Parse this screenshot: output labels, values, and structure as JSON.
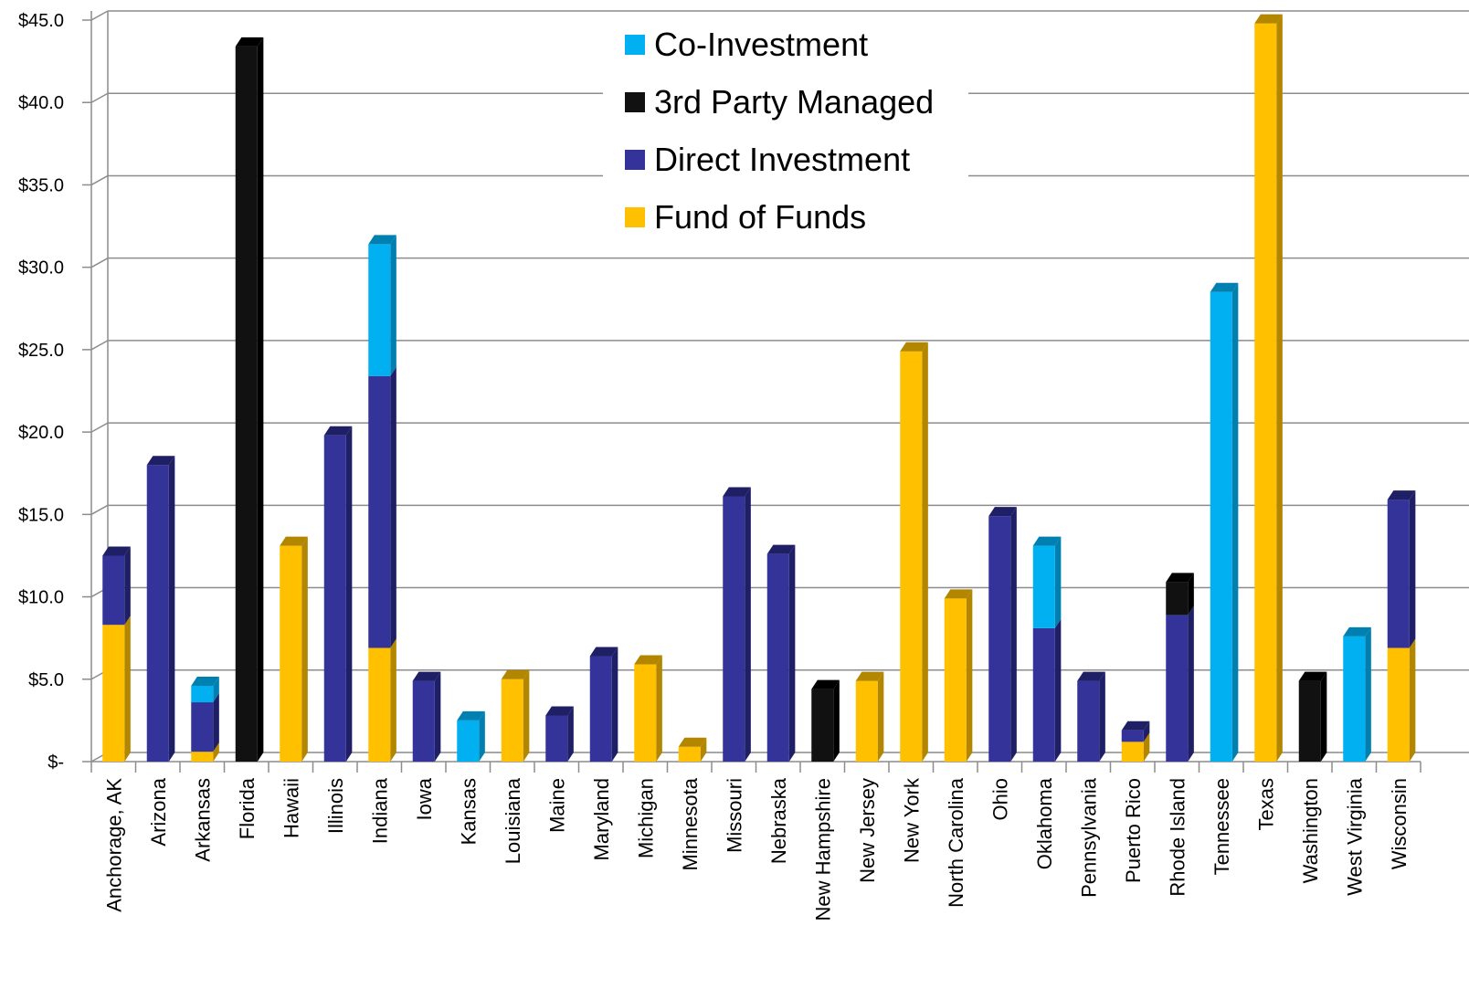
{
  "chart_data": {
    "type": "bar",
    "stacked": true,
    "style": "3d-column",
    "title": "",
    "xlabel": "",
    "ylabel": "",
    "ylim": [
      0,
      45
    ],
    "y_ticks": [
      {
        "value": 0,
        "label": "$-"
      },
      {
        "value": 5,
        "label": "$5.0"
      },
      {
        "value": 10,
        "label": "$10.0"
      },
      {
        "value": 15,
        "label": "$15.0"
      },
      {
        "value": 20,
        "label": "$20.0"
      },
      {
        "value": 25,
        "label": "$25.0"
      },
      {
        "value": 30,
        "label": "$30.0"
      },
      {
        "value": 35,
        "label": "$35.0"
      },
      {
        "value": 40,
        "label": "$40.0"
      },
      {
        "value": 45,
        "label": "$45.0"
      }
    ],
    "grid": true,
    "legend_position": "top-center",
    "categories": [
      "Anchorage, AK",
      "Arizona",
      "Arkansas",
      "Florida",
      "Hawaii",
      "Illinois",
      "Indiana",
      "Iowa",
      "Kansas",
      "Louisiana",
      "Maine",
      "Maryland",
      "Michigan",
      "Minnesota",
      "Missouri",
      "Nebraska",
      "New Hampshire",
      "New Jersey",
      "New York",
      "North Carolina",
      "Ohio",
      "Oklahoma",
      "Pennsylvania",
      "Puerto Rico",
      "Rhode Island",
      "Tennessee",
      "Texas",
      "Washington",
      "West Virginia",
      "Wisconsin"
    ],
    "series": [
      {
        "name": "Fund of Funds",
        "color": "#FFC000",
        "side_color": "#B38600",
        "values": [
          8.3,
          0,
          0.6,
          0,
          13.1,
          0,
          6.9,
          0,
          0,
          5.0,
          0,
          0,
          5.9,
          0.9,
          0,
          0,
          0,
          4.9,
          24.9,
          9.9,
          0,
          0,
          0,
          1.2,
          0,
          0,
          44.8,
          0,
          0,
          6.9
        ]
      },
      {
        "name": "Direct Investment",
        "color": "#333399",
        "side_color": "#1F1F66",
        "values": [
          4.2,
          18.0,
          3.0,
          0,
          0,
          19.8,
          16.5,
          4.9,
          0,
          0,
          2.8,
          6.4,
          0,
          0,
          16.1,
          12.6,
          0,
          0,
          0,
          0,
          14.9,
          8.1,
          4.9,
          0.7,
          8.9,
          0,
          0,
          0,
          0,
          9.0
        ]
      },
      {
        "name": "3rd Party Managed",
        "color": "#111111",
        "side_color": "#000000",
        "values": [
          0,
          0,
          0,
          43.4,
          0,
          0,
          0,
          0,
          0,
          0,
          0,
          0,
          0,
          0,
          0,
          0,
          4.4,
          0,
          0,
          0,
          0,
          0,
          0,
          0,
          2.0,
          0,
          0,
          4.9,
          0,
          0
        ]
      },
      {
        "name": "Co-Investment",
        "color": "#00B0F0",
        "side_color": "#0080B0",
        "values": [
          0,
          0,
          1.0,
          0,
          0,
          0,
          8.0,
          0,
          2.5,
          0,
          0,
          0,
          0,
          0,
          0,
          0,
          0,
          0,
          0,
          0,
          0,
          5.0,
          0,
          0,
          0,
          28.5,
          0,
          0,
          7.6,
          0
        ]
      }
    ],
    "legend_order": [
      "Co-Investment",
      "3rd Party Managed",
      "Direct Investment",
      "Fund of Funds"
    ]
  }
}
